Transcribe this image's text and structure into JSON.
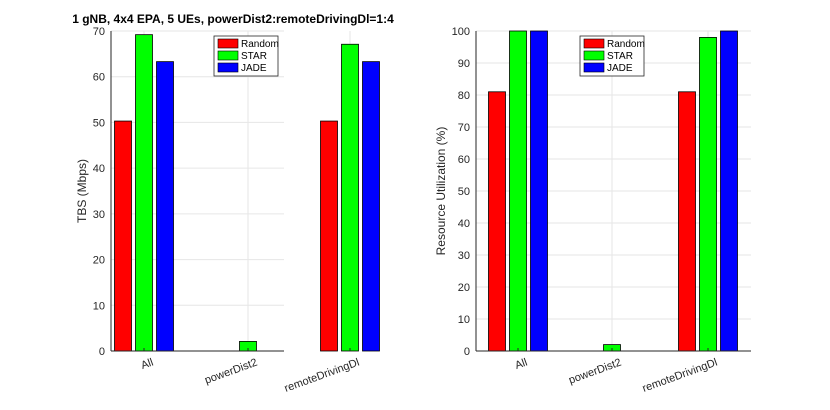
{
  "chart_data": [
    {
      "type": "bar",
      "title": "1 gNB, 4x4 EPA, 5 UEs, powerDist2:remoteDrivingDl=1:4",
      "xlabel": "",
      "ylabel": "TBS (Mbps)",
      "ylim": [
        0,
        70
      ],
      "yticks": [
        0,
        10,
        20,
        30,
        40,
        50,
        60,
        70
      ],
      "categories": [
        "All",
        "powerDist2",
        "remoteDrivingDl"
      ],
      "series": [
        {
          "name": "Random",
          "color": "#ff0000",
          "values": [
            50.3,
            0,
            50.3
          ]
        },
        {
          "name": "STAR",
          "color": "#00ff00",
          "values": [
            69.2,
            2.1,
            67.1
          ]
        },
        {
          "name": "JADE",
          "color": "#0000ff",
          "values": [
            63.3,
            0,
            63.3
          ]
        }
      ],
      "legend": "top-center",
      "grid": true
    },
    {
      "type": "bar",
      "title": "",
      "xlabel": "",
      "ylabel": "Resource Utilization (%)",
      "ylim": [
        0,
        100
      ],
      "yticks": [
        0,
        10,
        20,
        30,
        40,
        50,
        60,
        70,
        80,
        90,
        100
      ],
      "categories": [
        "All",
        "powerDist2",
        "remoteDrivingDl"
      ],
      "series": [
        {
          "name": "Random",
          "color": "#ff0000",
          "values": [
            81,
            0,
            81
          ]
        },
        {
          "name": "STAR",
          "color": "#00ff00",
          "values": [
            100,
            2,
            98
          ]
        },
        {
          "name": "JADE",
          "color": "#0000ff",
          "values": [
            100,
            0,
            100
          ]
        }
      ],
      "legend": "top-center",
      "grid": true
    }
  ]
}
